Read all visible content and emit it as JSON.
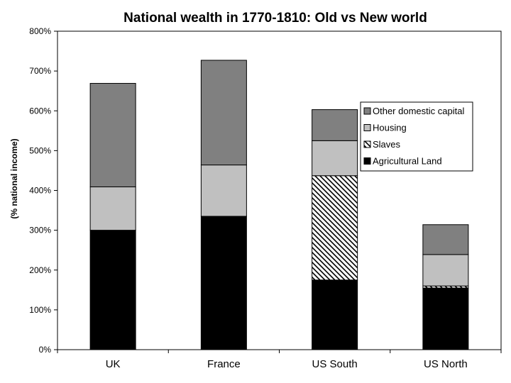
{
  "chart_data": {
    "type": "bar",
    "stacked": true,
    "title": "National wealth in 1770-1810: Old vs New world",
    "xlabel": "",
    "ylabel": "(% national income)",
    "ylim": [
      0,
      800
    ],
    "yticks": [
      0,
      100,
      200,
      300,
      400,
      500,
      600,
      700,
      800
    ],
    "ytick_suffix": "%",
    "grid": false,
    "legend_position": "right",
    "categories": [
      "UK",
      "France",
      "US South",
      "US North"
    ],
    "series": [
      {
        "name": "Agricultural Land",
        "values": [
          300,
          335,
          175,
          155
        ],
        "fill": "#000000"
      },
      {
        "name": "Slaves",
        "values": [
          0,
          0,
          262,
          5
        ],
        "fill": "hatch"
      },
      {
        "name": "Housing",
        "values": [
          109,
          129,
          88,
          79
        ],
        "fill": "#c0c0c0"
      },
      {
        "name": "Other domestic capital",
        "values": [
          260,
          263,
          78,
          75
        ],
        "fill": "#808080"
      }
    ],
    "legend_order": [
      "Other domestic capital",
      "Housing",
      "Slaves",
      "Agricultural Land"
    ]
  }
}
